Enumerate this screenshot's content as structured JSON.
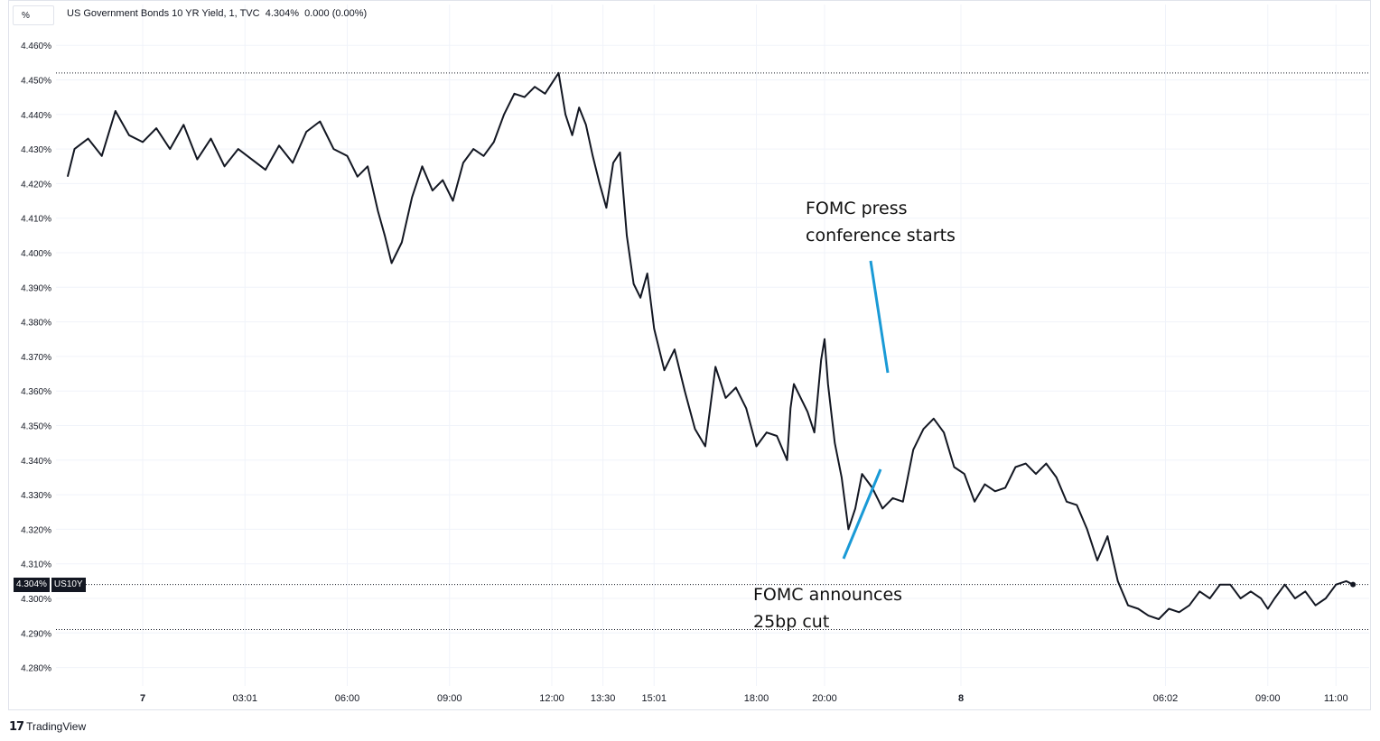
{
  "header": {
    "unit_button": "%",
    "legend": "US Government Bonds 10 YR Yield, 1, TVC  4.304%  0.000 (0.00%)"
  },
  "price_tag": {
    "value": "4.304%",
    "symbol": "US10Y"
  },
  "footer": {
    "brand": "TradingView",
    "logo_icon": "tradingview-logo-icon"
  },
  "annotations": [
    {
      "text": "FOMC press\nconference starts"
    },
    {
      "text": "FOMC announces\n25bp cut"
    }
  ],
  "colors": {
    "line": "#131722",
    "annotation_arrow": "#1a9ad6",
    "grid": "#f0f3fa",
    "tag_bg": "#131722"
  },
  "chart_data": {
    "type": "line",
    "title": "US Government Bonds 10 YR Yield, 1, TVC",
    "xlabel": "",
    "ylabel": "",
    "ylim": [
      4.275,
      4.465
    ],
    "y_ticks": [
      "4.460%",
      "4.450%",
      "4.440%",
      "4.430%",
      "4.420%",
      "4.410%",
      "4.400%",
      "4.390%",
      "4.380%",
      "4.370%",
      "4.360%",
      "4.350%",
      "4.340%",
      "4.330%",
      "4.320%",
      "4.310%",
      "4.300%",
      "4.290%",
      "4.280%"
    ],
    "y_tick_values": [
      4.46,
      4.45,
      4.44,
      4.43,
      4.42,
      4.41,
      4.4,
      4.39,
      4.38,
      4.37,
      4.36,
      4.35,
      4.34,
      4.33,
      4.32,
      4.31,
      4.3,
      4.29,
      4.28
    ],
    "x_ticks": [
      {
        "label": "7",
        "hour": 0.0,
        "bold": true
      },
      {
        "label": "03:01",
        "hour": 3.0
      },
      {
        "label": "06:00",
        "hour": 6.0
      },
      {
        "label": "09:00",
        "hour": 9.0
      },
      {
        "label": "12:00",
        "hour": 12.0
      },
      {
        "label": "13:30",
        "hour": 13.5
      },
      {
        "label": "15:01",
        "hour": 15.0
      },
      {
        "label": "18:00",
        "hour": 18.0
      },
      {
        "label": "20:00",
        "hour": 20.0
      },
      {
        "label": "8",
        "hour": 24.0,
        "bold": true
      },
      {
        "label": "06:02",
        "hour": 30.0
      },
      {
        "label": "09:00",
        "hour": 33.0
      },
      {
        "label": "11:00",
        "hour": 35.0
      }
    ],
    "series": [
      {
        "name": "US10Y",
        "x_hours": [
          -2.2,
          -2.0,
          -1.6,
          -1.2,
          -0.8,
          -0.4,
          0.0,
          0.4,
          0.8,
          1.2,
          1.6,
          2.0,
          2.4,
          2.8,
          3.2,
          3.6,
          4.0,
          4.4,
          4.8,
          5.2,
          5.6,
          6.0,
          6.3,
          6.6,
          6.9,
          7.1,
          7.3,
          7.6,
          7.9,
          8.2,
          8.5,
          8.8,
          9.1,
          9.4,
          9.7,
          10.0,
          10.3,
          10.6,
          10.9,
          11.2,
          11.5,
          11.8,
          12.0,
          12.2,
          12.4,
          12.6,
          12.8,
          13.0,
          13.2,
          13.4,
          13.6,
          13.8,
          14.0,
          14.2,
          14.4,
          14.6,
          14.8,
          15.0,
          15.3,
          15.6,
          15.9,
          16.2,
          16.5,
          16.8,
          17.1,
          17.4,
          17.7,
          18.0,
          18.3,
          18.6,
          18.9,
          19.0,
          19.1,
          19.3,
          19.5,
          19.7,
          19.9,
          20.0,
          20.1,
          20.3,
          20.5,
          20.7,
          20.9,
          21.1,
          21.4,
          21.7,
          22.0,
          22.3,
          22.6,
          22.9,
          23.2,
          23.5,
          23.8,
          24.1,
          24.4,
          24.7,
          25.0,
          25.3,
          25.6,
          25.9,
          26.2,
          26.5,
          26.8,
          27.1,
          27.4,
          27.7,
          28.0,
          28.3,
          28.6,
          28.9,
          29.2,
          29.5,
          29.8,
          30.1,
          30.4,
          30.7,
          31.0,
          31.3,
          31.6,
          31.9,
          32.2,
          32.5,
          32.8,
          33.0,
          33.2,
          33.5,
          33.8,
          34.1,
          34.4,
          34.7,
          35.0,
          35.3,
          35.5
        ],
        "values": [
          4.422,
          4.43,
          4.433,
          4.428,
          4.441,
          4.434,
          4.432,
          4.436,
          4.43,
          4.437,
          4.427,
          4.433,
          4.425,
          4.43,
          4.427,
          4.424,
          4.431,
          4.426,
          4.435,
          4.438,
          4.43,
          4.428,
          4.422,
          4.425,
          4.412,
          4.405,
          4.397,
          4.403,
          4.416,
          4.425,
          4.418,
          4.421,
          4.415,
          4.426,
          4.43,
          4.428,
          4.432,
          4.44,
          4.446,
          4.445,
          4.448,
          4.446,
          4.449,
          4.452,
          4.44,
          4.434,
          4.442,
          4.437,
          4.428,
          4.42,
          4.413,
          4.426,
          4.429,
          4.405,
          4.391,
          4.387,
          4.394,
          4.378,
          4.366,
          4.372,
          4.36,
          4.349,
          4.344,
          4.367,
          4.358,
          4.361,
          4.355,
          4.344,
          4.348,
          4.347,
          4.34,
          4.355,
          4.362,
          4.358,
          4.354,
          4.348,
          4.369,
          4.375,
          4.362,
          4.345,
          4.335,
          4.32,
          4.326,
          4.336,
          4.332,
          4.326,
          4.329,
          4.328,
          4.343,
          4.349,
          4.352,
          4.348,
          4.338,
          4.336,
          4.328,
          4.333,
          4.331,
          4.332,
          4.338,
          4.339,
          4.336,
          4.339,
          4.335,
          4.328,
          4.327,
          4.32,
          4.311,
          4.318,
          4.305,
          4.298,
          4.297,
          4.295,
          4.294,
          4.297,
          4.296,
          4.298,
          4.302,
          4.3,
          4.304,
          4.304,
          4.3,
          4.302,
          4.3,
          4.297,
          4.3,
          4.304,
          4.3,
          4.302,
          4.298,
          4.3,
          4.304,
          4.305,
          4.304
        ]
      }
    ],
    "reference_lines": [
      {
        "value": 4.452,
        "style": "dotted"
      },
      {
        "value": 4.304,
        "style": "dotted"
      },
      {
        "value": 4.291,
        "style": "dotted"
      }
    ],
    "grid": true,
    "legend": "top-left"
  }
}
